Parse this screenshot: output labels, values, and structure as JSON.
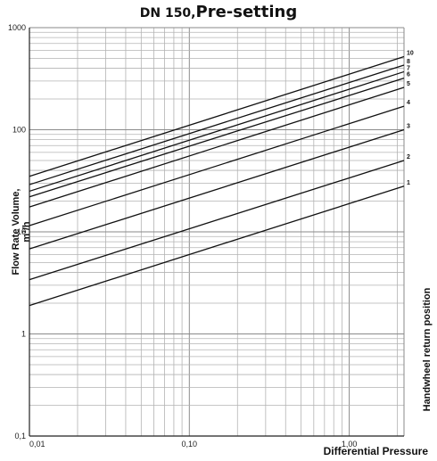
{
  "title_prefix": "DN 150,",
  "title_main": "Pre-setting",
  "chart_data": {
    "type": "line",
    "title": "DN 150, Pre-setting",
    "xlabel": "Differential Pressure",
    "ylabel_line1": "Flow Rate Volume,",
    "ylabel_line2": "m³/h",
    "legend_title": "Handwheel return position",
    "x_scale": "log",
    "y_scale": "log",
    "xlim": [
      0.01,
      2.2
    ],
    "ylim": [
      0.1,
      1000
    ],
    "grid": true,
    "x_ticks": [
      {
        "value": 0.01,
        "label": "0,01"
      },
      {
        "value": 0.1,
        "label": "0,10"
      },
      {
        "value": 1,
        "label": "1,00"
      }
    ],
    "y_ticks": [
      {
        "value": 0.1,
        "label": "0,1"
      },
      {
        "value": 1,
        "label": "1"
      },
      {
        "value": 10,
        "label": "10"
      },
      {
        "value": 100,
        "label": "100"
      },
      {
        "value": 1000,
        "label": "1000"
      }
    ],
    "series": [
      {
        "name": "1",
        "x": [
          0.01,
          2.2
        ],
        "y": [
          1.9,
          28
        ]
      },
      {
        "name": "2",
        "x": [
          0.01,
          2.2
        ],
        "y": [
          3.4,
          50
        ]
      },
      {
        "name": "3",
        "x": [
          0.01,
          2.2
        ],
        "y": [
          6.8,
          100
        ]
      },
      {
        "name": "4",
        "x": [
          0.01,
          2.2
        ],
        "y": [
          11.5,
          170
        ]
      },
      {
        "name": "5",
        "x": [
          0.01,
          2.2
        ],
        "y": [
          17.5,
          260
        ]
      },
      {
        "name": "6",
        "x": [
          0.01,
          2.2
        ],
        "y": [
          22,
          320
        ]
      },
      {
        "name": "7",
        "x": [
          0.01,
          2.2
        ],
        "y": [
          25,
          370
        ]
      },
      {
        "name": "8",
        "x": [
          0.01,
          2.2
        ],
        "y": [
          29,
          430
        ]
      },
      {
        "name": "10",
        "x": [
          0.01,
          2.2
        ],
        "y": [
          35,
          520
        ]
      }
    ]
  }
}
